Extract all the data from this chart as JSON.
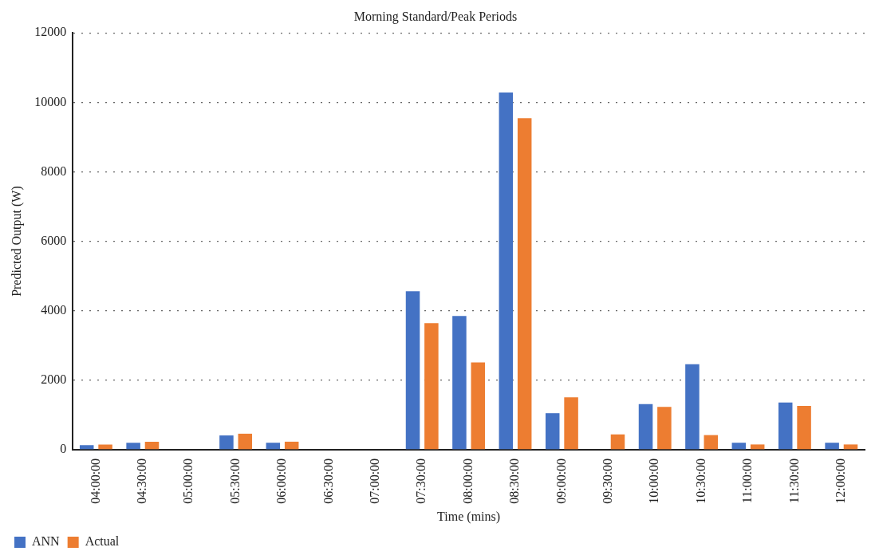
{
  "chart_data": {
    "type": "bar",
    "title": "Morning Standard/Peak Periods",
    "xlabel": "Time (mins)",
    "ylabel": "Predicted Output (W)",
    "categories": [
      "04:00:00",
      "04:30:00",
      "05:00:00",
      "05:30:00",
      "06:00:00",
      "06:30:00",
      "07:00:00",
      "07:30:00",
      "08:00:00",
      "08:30:00",
      "09:00:00",
      "09:30:00",
      "10:00:00",
      "10:30:00",
      "11:00:00",
      "11:30:00",
      "12:00:00"
    ],
    "series": [
      {
        "name": "ANN",
        "color": "#4472c4",
        "values": [
          130,
          200,
          0,
          410,
          200,
          0,
          0,
          4560,
          3850,
          10280,
          1050,
          0,
          1310,
          2460,
          200,
          1360,
          200
        ]
      },
      {
        "name": "Actual",
        "color": "#ed7d31",
        "values": [
          150,
          230,
          0,
          460,
          230,
          0,
          0,
          3640,
          2510,
          9540,
          1510,
          440,
          1230,
          420,
          150,
          1260,
          150
        ]
      }
    ],
    "ylim": [
      0,
      12000
    ],
    "yticks": [
      0,
      2000,
      4000,
      6000,
      8000,
      10000,
      12000
    ],
    "grid": "y",
    "legend": "bottom left"
  }
}
